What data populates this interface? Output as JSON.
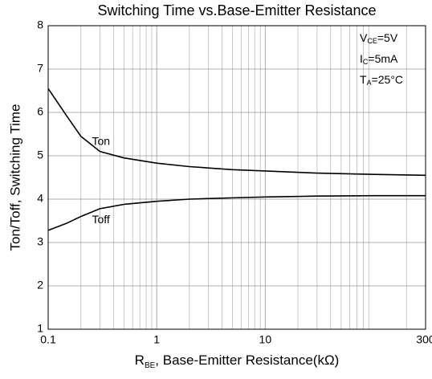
{
  "chart_data": {
    "type": "line",
    "title": "Switching Time vs.Base-Emitter Resistance",
    "ylabel": "Ton/Toff, Switching Time",
    "xlabel": {
      "main": "R",
      "sub": "BE",
      "rest": ", Base-Emitter Resistance(kΩ)"
    },
    "annotations": [
      {
        "main": "V",
        "sub": "CE",
        "rest": "=5V"
      },
      {
        "main": "I",
        "sub": "C",
        "rest": "=5mA"
      },
      {
        "main": "T",
        "sub": "A",
        "rest": "=25°C"
      }
    ],
    "x": [
      0.1,
      0.15,
      0.2,
      0.3,
      0.5,
      1,
      2,
      5,
      10,
      30,
      100,
      300
    ],
    "series": [
      {
        "name": "Ton",
        "color": "#000000",
        "values": [
          6.55,
          5.9,
          5.45,
          5.1,
          4.95,
          4.83,
          4.75,
          4.68,
          4.65,
          4.6,
          4.57,
          4.55
        ]
      },
      {
        "name": "Toff",
        "color": "#000000",
        "values": [
          3.28,
          3.45,
          3.6,
          3.78,
          3.88,
          3.95,
          4.0,
          4.03,
          4.05,
          4.07,
          4.08,
          4.08
        ]
      }
    ],
    "xlim": [
      0.1,
      300
    ],
    "xticks": [
      0.1,
      1,
      10,
      300
    ],
    "xscale": "log",
    "ylim": [
      1,
      8
    ],
    "yticks": [
      1,
      2,
      3,
      4,
      5,
      6,
      7,
      8
    ],
    "grid": true
  }
}
